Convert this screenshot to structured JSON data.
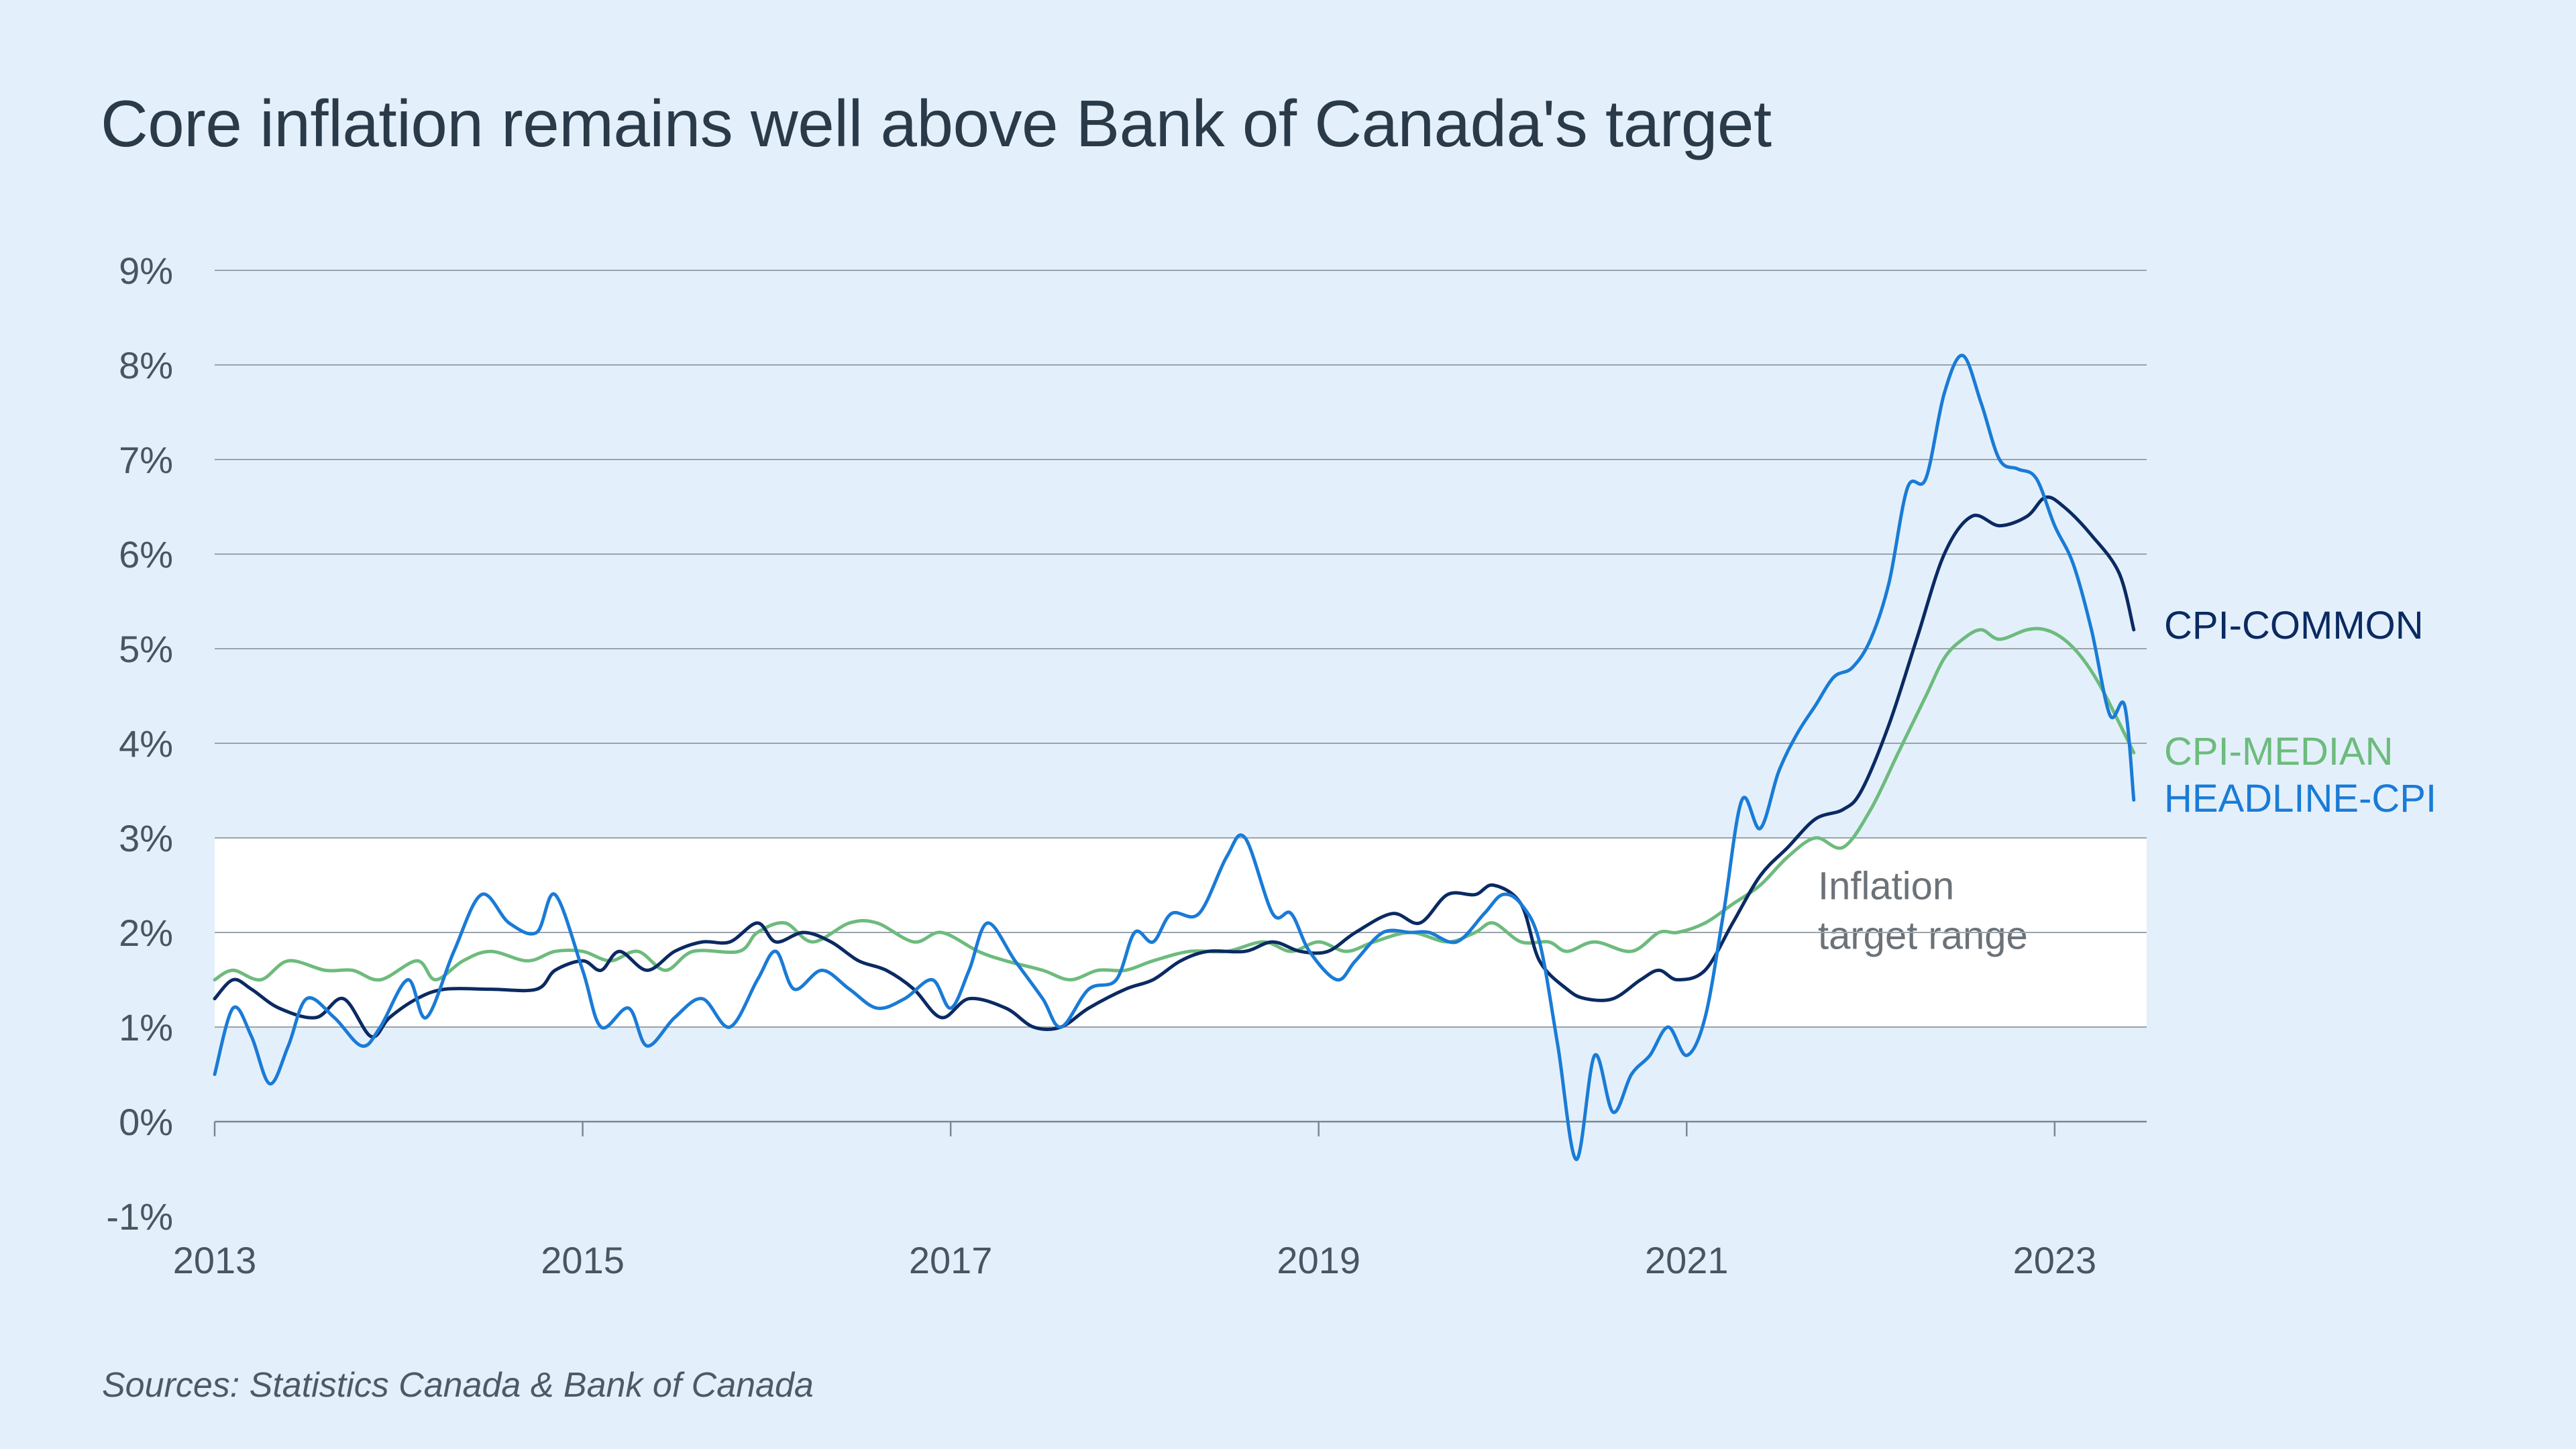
{
  "chart_data": {
    "type": "line",
    "title": "Core inflation remains well above Bank of Canada's target",
    "source": "Sources: Statistics Canada & Bank of Canada",
    "xlabel": "",
    "ylabel": "",
    "xlim": [
      2013.0,
      2023.5
    ],
    "ylim": [
      -1,
      9
    ],
    "y_ticks": [
      -1,
      0,
      1,
      2,
      3,
      4,
      5,
      6,
      7,
      8,
      9
    ],
    "y_tick_labels": [
      "-1%",
      "0%",
      "1%",
      "2%",
      "3%",
      "4%",
      "5%",
      "6%",
      "7%",
      "8%",
      "9%"
    ],
    "x_ticks": [
      2013,
      2015,
      2017,
      2019,
      2021,
      2023
    ],
    "x_tick_labels": [
      "2013",
      "2015",
      "2017",
      "2019",
      "2021",
      "2023"
    ],
    "target_band": {
      "low": 1,
      "high": 3,
      "label_lines": [
        "Inflation",
        "target range"
      ],
      "color": "#ffffff"
    },
    "series": [
      {
        "name": "CPI-MEDIAN",
        "color": "#6dbb7d",
        "points": [
          [
            2013.0,
            1.5
          ],
          [
            2013.1,
            1.6
          ],
          [
            2013.25,
            1.5
          ],
          [
            2013.4,
            1.7
          ],
          [
            2013.6,
            1.6
          ],
          [
            2013.75,
            1.6
          ],
          [
            2013.9,
            1.5
          ],
          [
            2014.1,
            1.7
          ],
          [
            2014.2,
            1.5
          ],
          [
            2014.35,
            1.7
          ],
          [
            2014.5,
            1.8
          ],
          [
            2014.7,
            1.7
          ],
          [
            2014.85,
            1.8
          ],
          [
            2015.0,
            1.8
          ],
          [
            2015.15,
            1.7
          ],
          [
            2015.3,
            1.8
          ],
          [
            2015.45,
            1.6
          ],
          [
            2015.6,
            1.8
          ],
          [
            2015.85,
            1.8
          ],
          [
            2015.95,
            2.0
          ],
          [
            2016.1,
            2.1
          ],
          [
            2016.25,
            1.9
          ],
          [
            2016.45,
            2.1
          ],
          [
            2016.6,
            2.1
          ],
          [
            2016.8,
            1.9
          ],
          [
            2016.95,
            2.0
          ],
          [
            2017.15,
            1.8
          ],
          [
            2017.3,
            1.7
          ],
          [
            2017.5,
            1.6
          ],
          [
            2017.65,
            1.5
          ],
          [
            2017.8,
            1.6
          ],
          [
            2017.95,
            1.6
          ],
          [
            2018.1,
            1.7
          ],
          [
            2018.3,
            1.8
          ],
          [
            2018.5,
            1.8
          ],
          [
            2018.7,
            1.9
          ],
          [
            2018.85,
            1.8
          ],
          [
            2019.0,
            1.9
          ],
          [
            2019.15,
            1.8
          ],
          [
            2019.3,
            1.9
          ],
          [
            2019.5,
            2.0
          ],
          [
            2019.7,
            1.9
          ],
          [
            2019.85,
            2.0
          ],
          [
            2019.95,
            2.1
          ],
          [
            2020.1,
            1.9
          ],
          [
            2020.25,
            1.9
          ],
          [
            2020.35,
            1.8
          ],
          [
            2020.5,
            1.9
          ],
          [
            2020.7,
            1.8
          ],
          [
            2020.85,
            2.0
          ],
          [
            2020.95,
            2.0
          ],
          [
            2021.1,
            2.1
          ],
          [
            2021.25,
            2.3
          ],
          [
            2021.4,
            2.5
          ],
          [
            2021.55,
            2.8
          ],
          [
            2021.7,
            3.0
          ],
          [
            2021.85,
            2.9
          ],
          [
            2022.0,
            3.3
          ],
          [
            2022.15,
            3.9
          ],
          [
            2022.3,
            4.5
          ],
          [
            2022.4,
            4.9
          ],
          [
            2022.5,
            5.1
          ],
          [
            2022.6,
            5.2
          ],
          [
            2022.7,
            5.1
          ],
          [
            2022.85,
            5.2
          ],
          [
            2022.95,
            5.2
          ],
          [
            2023.05,
            5.1
          ],
          [
            2023.15,
            4.9
          ],
          [
            2023.25,
            4.6
          ],
          [
            2023.38,
            4.1
          ],
          [
            2023.43,
            3.9
          ]
        ]
      },
      {
        "name": "CPI-COMMON",
        "color": "#0b2a63",
        "points": [
          [
            2013.0,
            1.3
          ],
          [
            2013.1,
            1.5
          ],
          [
            2013.2,
            1.4
          ],
          [
            2013.35,
            1.2
          ],
          [
            2013.55,
            1.1
          ],
          [
            2013.7,
            1.3
          ],
          [
            2013.85,
            0.9
          ],
          [
            2013.95,
            1.1
          ],
          [
            2014.1,
            1.3
          ],
          [
            2014.25,
            1.4
          ],
          [
            2014.5,
            1.4
          ],
          [
            2014.75,
            1.4
          ],
          [
            2014.85,
            1.6
          ],
          [
            2015.0,
            1.7
          ],
          [
            2015.1,
            1.6
          ],
          [
            2015.2,
            1.8
          ],
          [
            2015.35,
            1.6
          ],
          [
            2015.5,
            1.8
          ],
          [
            2015.65,
            1.9
          ],
          [
            2015.8,
            1.9
          ],
          [
            2015.95,
            2.1
          ],
          [
            2016.05,
            1.9
          ],
          [
            2016.2,
            2.0
          ],
          [
            2016.35,
            1.9
          ],
          [
            2016.5,
            1.7
          ],
          [
            2016.65,
            1.6
          ],
          [
            2016.8,
            1.4
          ],
          [
            2016.95,
            1.1
          ],
          [
            2017.1,
            1.3
          ],
          [
            2017.3,
            1.2
          ],
          [
            2017.45,
            1.0
          ],
          [
            2017.6,
            1.0
          ],
          [
            2017.75,
            1.2
          ],
          [
            2017.95,
            1.4
          ],
          [
            2018.1,
            1.5
          ],
          [
            2018.25,
            1.7
          ],
          [
            2018.4,
            1.8
          ],
          [
            2018.6,
            1.8
          ],
          [
            2018.75,
            1.9
          ],
          [
            2018.9,
            1.8
          ],
          [
            2019.05,
            1.8
          ],
          [
            2019.2,
            2.0
          ],
          [
            2019.4,
            2.2
          ],
          [
            2019.55,
            2.1
          ],
          [
            2019.7,
            2.4
          ],
          [
            2019.85,
            2.4
          ],
          [
            2019.95,
            2.5
          ],
          [
            2020.1,
            2.3
          ],
          [
            2020.2,
            1.7
          ],
          [
            2020.35,
            1.4
          ],
          [
            2020.45,
            1.3
          ],
          [
            2020.6,
            1.3
          ],
          [
            2020.75,
            1.5
          ],
          [
            2020.85,
            1.6
          ],
          [
            2020.95,
            1.5
          ],
          [
            2021.1,
            1.6
          ],
          [
            2021.25,
            2.1
          ],
          [
            2021.4,
            2.6
          ],
          [
            2021.55,
            2.9
          ],
          [
            2021.7,
            3.2
          ],
          [
            2021.85,
            3.3
          ],
          [
            2021.95,
            3.5
          ],
          [
            2022.1,
            4.2
          ],
          [
            2022.25,
            5.1
          ],
          [
            2022.4,
            6.0
          ],
          [
            2022.55,
            6.4
          ],
          [
            2022.7,
            6.3
          ],
          [
            2022.85,
            6.4
          ],
          [
            2022.95,
            6.6
          ],
          [
            2023.05,
            6.5
          ],
          [
            2023.2,
            6.2
          ],
          [
            2023.35,
            5.8
          ],
          [
            2023.43,
            5.2
          ]
        ]
      },
      {
        "name": "HEADLINE-CPI",
        "color": "#1a7bd6",
        "points": [
          [
            2013.0,
            0.5
          ],
          [
            2013.1,
            1.2
          ],
          [
            2013.2,
            0.9
          ],
          [
            2013.3,
            0.4
          ],
          [
            2013.4,
            0.8
          ],
          [
            2013.5,
            1.3
          ],
          [
            2013.65,
            1.1
          ],
          [
            2013.8,
            0.8
          ],
          [
            2013.9,
            1.0
          ],
          [
            2014.05,
            1.5
          ],
          [
            2014.15,
            1.1
          ],
          [
            2014.3,
            1.8
          ],
          [
            2014.45,
            2.4
          ],
          [
            2014.6,
            2.1
          ],
          [
            2014.75,
            2.0
          ],
          [
            2014.85,
            2.4
          ],
          [
            2015.0,
            1.6
          ],
          [
            2015.1,
            1.0
          ],
          [
            2015.25,
            1.2
          ],
          [
            2015.35,
            0.8
          ],
          [
            2015.5,
            1.1
          ],
          [
            2015.65,
            1.3
          ],
          [
            2015.8,
            1.0
          ],
          [
            2015.95,
            1.5
          ],
          [
            2016.05,
            1.8
          ],
          [
            2016.15,
            1.4
          ],
          [
            2016.3,
            1.6
          ],
          [
            2016.45,
            1.4
          ],
          [
            2016.6,
            1.2
          ],
          [
            2016.75,
            1.3
          ],
          [
            2016.9,
            1.5
          ],
          [
            2017.0,
            1.2
          ],
          [
            2017.1,
            1.6
          ],
          [
            2017.2,
            2.1
          ],
          [
            2017.35,
            1.7
          ],
          [
            2017.5,
            1.3
          ],
          [
            2017.6,
            1.0
          ],
          [
            2017.75,
            1.4
          ],
          [
            2017.9,
            1.5
          ],
          [
            2018.0,
            2.0
          ],
          [
            2018.1,
            1.9
          ],
          [
            2018.2,
            2.2
          ],
          [
            2018.35,
            2.2
          ],
          [
            2018.5,
            2.8
          ],
          [
            2018.6,
            3.0
          ],
          [
            2018.75,
            2.2
          ],
          [
            2018.85,
            2.2
          ],
          [
            2018.95,
            1.8
          ],
          [
            2019.1,
            1.5
          ],
          [
            2019.2,
            1.7
          ],
          [
            2019.35,
            2.0
          ],
          [
            2019.5,
            2.0
          ],
          [
            2019.6,
            2.0
          ],
          [
            2019.75,
            1.9
          ],
          [
            2019.9,
            2.2
          ],
          [
            2020.0,
            2.4
          ],
          [
            2020.1,
            2.3
          ],
          [
            2020.2,
            1.9
          ],
          [
            2020.3,
            0.8
          ],
          [
            2020.4,
            -0.4
          ],
          [
            2020.5,
            0.7
          ],
          [
            2020.6,
            0.1
          ],
          [
            2020.7,
            0.5
          ],
          [
            2020.8,
            0.7
          ],
          [
            2020.9,
            1.0
          ],
          [
            2021.0,
            0.7
          ],
          [
            2021.1,
            1.1
          ],
          [
            2021.2,
            2.2
          ],
          [
            2021.3,
            3.4
          ],
          [
            2021.4,
            3.1
          ],
          [
            2021.5,
            3.7
          ],
          [
            2021.6,
            4.1
          ],
          [
            2021.7,
            4.4
          ],
          [
            2021.8,
            4.7
          ],
          [
            2021.9,
            4.8
          ],
          [
            2022.0,
            5.1
          ],
          [
            2022.1,
            5.7
          ],
          [
            2022.2,
            6.7
          ],
          [
            2022.3,
            6.8
          ],
          [
            2022.4,
            7.7
          ],
          [
            2022.5,
            8.1
          ],
          [
            2022.6,
            7.6
          ],
          [
            2022.7,
            7.0
          ],
          [
            2022.8,
            6.9
          ],
          [
            2022.9,
            6.8
          ],
          [
            2023.0,
            6.3
          ],
          [
            2023.1,
            5.9
          ],
          [
            2023.2,
            5.2
          ],
          [
            2023.3,
            4.3
          ],
          [
            2023.38,
            4.4
          ],
          [
            2023.43,
            3.4
          ]
        ]
      }
    ],
    "series_labels": [
      {
        "text": "CPI-COMMON",
        "color": "#0b2a63",
        "value": 5.2
      },
      {
        "text": "CPI-MEDIAN",
        "color": "#6dbb7d",
        "value": 3.9
      },
      {
        "text": "HEADLINE-CPI",
        "color": "#1a7bd6",
        "value": 3.4
      }
    ]
  }
}
